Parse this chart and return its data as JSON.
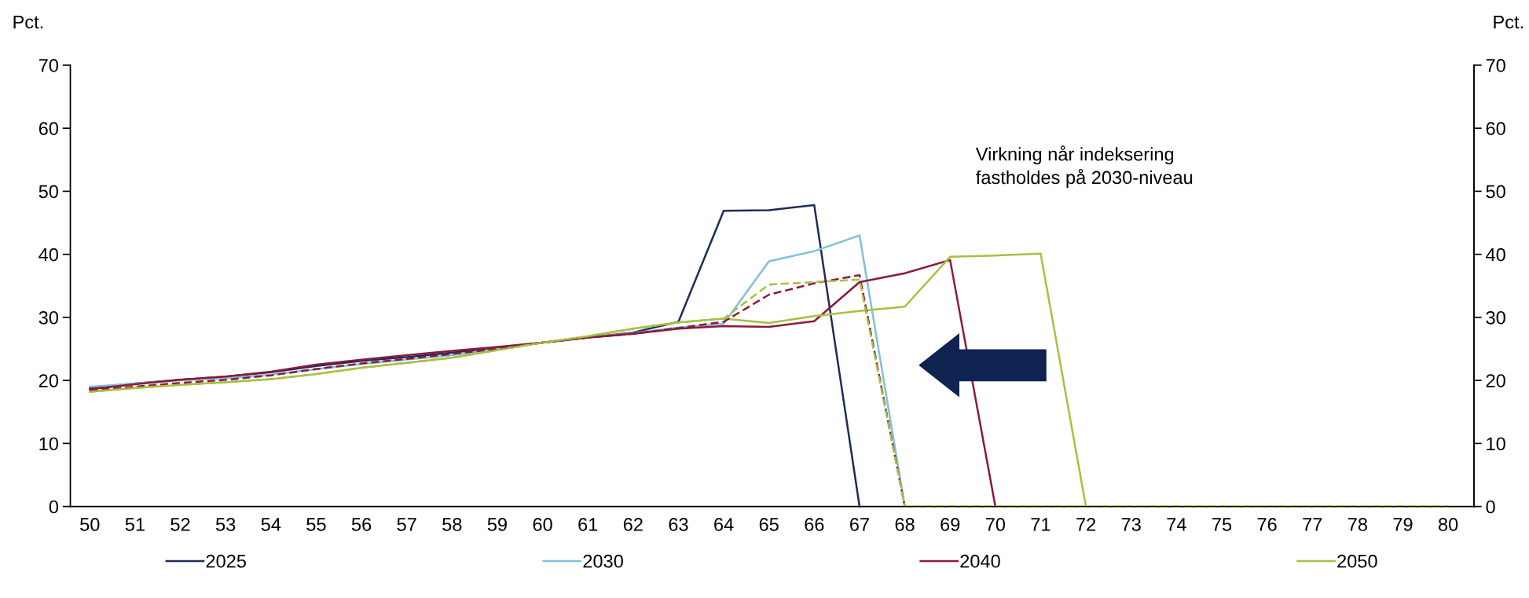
{
  "chart_data": {
    "type": "line",
    "categories": [
      "50",
      "51",
      "52",
      "53",
      "54",
      "55",
      "56",
      "57",
      "58",
      "59",
      "60",
      "61",
      "62",
      "63",
      "64",
      "65",
      "66",
      "67",
      "68",
      "69",
      "70",
      "71",
      "72",
      "73",
      "74",
      "75",
      "76",
      "77",
      "78",
      "79",
      "80"
    ],
    "series": [
      {
        "name": "2025",
        "color": "#1f2a5c",
        "line_style": "solid",
        "values": [
          18.8,
          19.5,
          20.1,
          20.6,
          21.3,
          22.3,
          23.1,
          23.7,
          24.4,
          25.2,
          26.0,
          26.8,
          27.6,
          29.3,
          46.9,
          47.0,
          47.8,
          0,
          null,
          null,
          null,
          null,
          null,
          null,
          null,
          null,
          null,
          null,
          null,
          null,
          null
        ]
      },
      {
        "name": "2030",
        "color": "#7fbfdf",
        "line_style": "solid",
        "values": [
          19.0,
          19.5,
          20.0,
          20.4,
          20.9,
          21.8,
          22.6,
          23.3,
          24.0,
          25.0,
          26.0,
          26.8,
          27.5,
          28.4,
          29.0,
          38.9,
          40.5,
          43.0,
          0,
          null,
          null,
          null,
          null,
          null,
          null,
          null,
          null,
          null,
          null,
          null,
          null
        ]
      },
      {
        "name": "2040",
        "color": "#8b1a3a",
        "line_style": "solid",
        "values": [
          18.6,
          19.4,
          20.1,
          20.6,
          21.4,
          22.5,
          23.3,
          24.0,
          24.7,
          25.3,
          26.0,
          26.8,
          27.4,
          28.2,
          28.6,
          28.5,
          29.4,
          35.6,
          37.0,
          39.1,
          0,
          null,
          null,
          null,
          null,
          null,
          null,
          null,
          null,
          null,
          null
        ]
      },
      {
        "name": "2050",
        "color": "#a8c040",
        "line_style": "solid",
        "values": [
          18.2,
          18.8,
          19.3,
          19.7,
          20.2,
          21.0,
          22.0,
          22.8,
          23.6,
          24.8,
          26.0,
          27.0,
          28.2,
          29.2,
          29.8,
          29.1,
          30.2,
          31.0,
          31.7,
          39.6,
          39.8,
          40.1,
          0,
          null,
          null,
          null,
          null,
          null,
          null,
          null,
          null
        ]
      },
      {
        "color": "#8b1a3a",
        "line_style": "dashed",
        "values": [
          18.4,
          19.0,
          19.6,
          20.1,
          20.8,
          21.8,
          22.7,
          23.4,
          24.2,
          25.0,
          26.0,
          26.8,
          27.4,
          28.3,
          29.3,
          33.6,
          35.4,
          36.7,
          0,
          null,
          null,
          null,
          null,
          null,
          null,
          null,
          null,
          null,
          null,
          null,
          null
        ]
      },
      {
        "color": "#a8c040",
        "line_style": "dashed",
        "values": [
          18.2,
          18.8,
          19.3,
          19.7,
          20.2,
          21.0,
          22.0,
          22.8,
          23.6,
          24.8,
          26.0,
          27.0,
          28.2,
          29.2,
          29.8,
          35.2,
          35.6,
          36.0,
          0,
          0,
          0,
          0,
          0,
          0,
          0,
          0,
          0,
          0,
          0,
          0,
          0
        ]
      }
    ],
    "ylim": [
      0,
      70
    ],
    "yticks": [
      0,
      10,
      20,
      30,
      40,
      50,
      60,
      70
    ],
    "y2lim": [
      0,
      70
    ],
    "y2ticks": [
      0,
      10,
      20,
      30,
      40,
      50,
      60,
      70
    ],
    "ylabel": "Pct.",
    "y2label": "Pct.",
    "annotations": [
      "Virkning når indeksering\nfastholdes på 2030-niveau"
    ],
    "grid": false,
    "legend": "bottom",
    "marker": "none"
  }
}
